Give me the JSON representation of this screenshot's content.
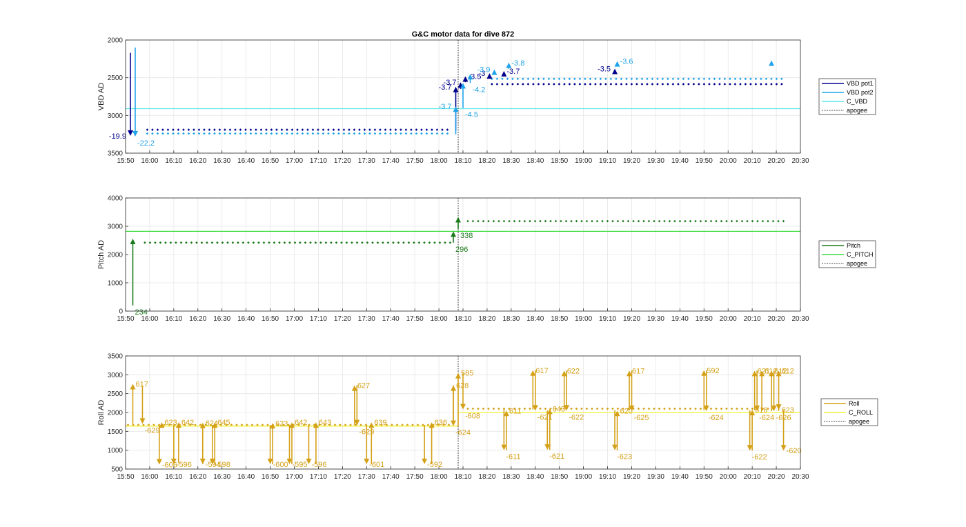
{
  "figure_title": "G&C motor data for dive 872",
  "chart_data": [
    {
      "type": "line",
      "panel": "vbd",
      "ylabel": "VBD AD",
      "ylim": [
        2000,
        3500
      ],
      "y_reversed": true,
      "yticks": [
        2000,
        2500,
        3000,
        3500
      ],
      "xlim": [
        "15:50",
        "20:30"
      ],
      "xticks": [
        "15:50",
        "16:00",
        "16:10",
        "16:20",
        "16:30",
        "16:40",
        "16:50",
        "17:00",
        "17:10",
        "17:20",
        "17:30",
        "17:40",
        "17:50",
        "18:00",
        "18:10",
        "18:20",
        "18:30",
        "18:40",
        "18:50",
        "19:00",
        "19:10",
        "19:20",
        "19:30",
        "19:40",
        "19:50",
        "20:00",
        "20:10",
        "20:20",
        "20:30"
      ],
      "grid": true,
      "legend_position": "right",
      "colors": {
        "pot1": "#00008b",
        "pot2": "#1fa3ea",
        "c_vbd": "#5ee8e8",
        "apogee": "#444444"
      },
      "series": [
        {
          "name": "VBD pot1",
          "dots": [
            {
              "from": "15:59",
              "to": "18:05",
              "y": 3190
            },
            {
              "from": "18:22",
              "to": "20:23",
              "y": 2585
            }
          ]
        },
        {
          "name": "VBD pot2",
          "dots": [
            {
              "from": "15:59",
              "to": "18:05",
              "y": 3240
            },
            {
              "from": "18:22",
              "to": "20:23",
              "y": 2515
            }
          ]
        },
        {
          "name": "C_VBD",
          "y": 2910
        },
        {
          "name": "apogee",
          "x": "18:08"
        }
      ],
      "arrows": [
        {
          "series": "pot1",
          "x": "15:52",
          "y0": 2170,
          "y1": 3270,
          "label": "-19.9",
          "label_side": "left"
        },
        {
          "series": "pot2",
          "x": "15:54",
          "y0": 2100,
          "y1": 3280,
          "label": "-22.2",
          "label_side": "below"
        },
        {
          "series": "pot1",
          "x": "18:07",
          "y0": 3200,
          "y1": 2620,
          "label": "-3.7",
          "label_side": "left"
        },
        {
          "series": "pot2",
          "x": "18:07",
          "y0": 3250,
          "y1": 2880,
          "label": "-3.7",
          "label_side": "left"
        },
        {
          "series": "pot1",
          "x": "18:09",
          "y0": 2650,
          "y1": 2560,
          "label": "-3.7",
          "label_side": "left"
        },
        {
          "series": "pot2",
          "x": "18:10",
          "y0": 2900,
          "y1": 2570,
          "label": "-4.5",
          "label_side": "below"
        },
        {
          "series": "pot1",
          "x": "18:11",
          "y0": 2560,
          "y1": 2480,
          "label": "-3.5",
          "label_side": "right"
        },
        {
          "series": "pot2",
          "x": "18:13",
          "y0": 2570,
          "y1": 2450,
          "label": "-4.2",
          "label_side": "below"
        },
        {
          "series": "pot1",
          "x": "18:21",
          "y0": 2500,
          "y1": 2440,
          "label": "-3",
          "label_side": "left"
        },
        {
          "series": "pot2",
          "x": "18:23",
          "y0": 2460,
          "y1": 2390,
          "label": "-3.9",
          "label_side": "left"
        },
        {
          "series": "pot1",
          "x": "18:27",
          "y0": 2470,
          "y1": 2410,
          "label": "-3.7",
          "label_side": "right"
        },
        {
          "series": "pot2",
          "x": "18:29",
          "y0": 2380,
          "y1": 2300,
          "label": "-3.8",
          "label_side": "right"
        },
        {
          "series": "pot1",
          "x": "19:13",
          "y0": 2440,
          "y1": 2380,
          "label": "-3.5",
          "label_side": "left"
        },
        {
          "series": "pot2",
          "x": "19:14",
          "y0": 2330,
          "y1": 2280,
          "label": "-3.6",
          "label_side": "right"
        },
        {
          "series": "pot2",
          "x": "20:18",
          "y0": 2310,
          "y1": 2270,
          "label": "",
          "label_side": "right"
        }
      ]
    },
    {
      "type": "line",
      "panel": "pitch",
      "ylabel": "Pitch AD",
      "ylim": [
        0,
        4000
      ],
      "y_reversed": false,
      "yticks": [
        0,
        1000,
        2000,
        3000,
        4000
      ],
      "xlim": [
        "15:50",
        "20:30"
      ],
      "xticks": [
        "15:50",
        "16:00",
        "16:10",
        "16:20",
        "16:30",
        "16:40",
        "16:50",
        "17:00",
        "17:10",
        "17:20",
        "17:30",
        "17:40",
        "17:50",
        "18:00",
        "18:10",
        "18:20",
        "18:30",
        "18:40",
        "18:50",
        "19:00",
        "19:10",
        "19:20",
        "19:30",
        "19:40",
        "19:50",
        "20:00",
        "20:10",
        "20:20",
        "20:30"
      ],
      "grid": true,
      "legend_position": "right",
      "colors": {
        "pitch": "#1b7a1b",
        "c_pitch": "#3ddb3d",
        "apogee": "#444444"
      },
      "series": [
        {
          "name": "Pitch",
          "dots": [
            {
              "from": "15:58",
              "to": "18:05",
              "y": 2420
            },
            {
              "from": "18:12",
              "to": "20:23",
              "y": 3180
            }
          ]
        },
        {
          "name": "C_PITCH",
          "y": 2820
        },
        {
          "name": "apogee",
          "x": "18:08"
        }
      ],
      "arrows": [
        {
          "series": "pitch",
          "x": "15:53",
          "y0": 200,
          "y1": 2560,
          "label": "234",
          "label_side": "below"
        },
        {
          "series": "pitch",
          "x": "18:06",
          "y0": 2420,
          "y1": 2820,
          "label": "296",
          "label_side": "below"
        },
        {
          "series": "pitch",
          "x": "18:08",
          "y0": 2900,
          "y1": 3330,
          "label": "338",
          "label_side": "below"
        }
      ]
    },
    {
      "type": "line",
      "panel": "roll",
      "ylabel": "Roll AD",
      "ylim": [
        500,
        3500
      ],
      "y_reversed": false,
      "yticks": [
        500,
        1000,
        1500,
        2000,
        2500,
        3000,
        3500
      ],
      "xlim": [
        "15:50",
        "20:30"
      ],
      "xticks": [
        "15:50",
        "16:00",
        "16:10",
        "16:20",
        "16:30",
        "16:40",
        "16:50",
        "17:00",
        "17:10",
        "17:20",
        "17:30",
        "17:40",
        "17:50",
        "18:00",
        "18:10",
        "18:20",
        "18:30",
        "18:40",
        "18:50",
        "19:00",
        "19:10",
        "19:20",
        "19:30",
        "19:40",
        "19:50",
        "20:00",
        "20:10",
        "20:20",
        "20:30"
      ],
      "grid": true,
      "legend_position": "right",
      "colors": {
        "roll": "#d4a017",
        "c_roll": "#f2f230",
        "apogee": "#444444"
      },
      "series": [
        {
          "name": "Roll",
          "dots": [
            {
              "from": "15:51",
              "to": "18:05",
              "y": 1670
            },
            {
              "from": "18:12",
              "to": "20:20",
              "y": 2100
            }
          ]
        },
        {
          "name": "C_ROLL",
          "y": 1640,
          "y_after_apogee": 2000
        },
        {
          "name": "apogee",
          "x": "18:08"
        }
      ],
      "arrows": [
        {
          "series": "roll",
          "x": "15:53",
          "y0": 1700,
          "y1": 2760,
          "label": "617",
          "label_side": "right"
        },
        {
          "series": "roll",
          "x": "15:57",
          "y0": 2700,
          "y1": 1700,
          "label": "-629",
          "label_side": "below"
        },
        {
          "series": "roll",
          "x": "16:04",
          "y0": 1670,
          "y1": 620,
          "label": "-606",
          "label_side": "right"
        },
        {
          "series": "roll",
          "x": "16:05",
          "y0": 1620,
          "y1": 1740,
          "label": "623",
          "label_side": "right"
        },
        {
          "series": "roll",
          "x": "16:10",
          "y0": 1670,
          "y1": 630,
          "label": "-596",
          "label_side": "right"
        },
        {
          "series": "roll",
          "x": "16:12",
          "y0": 660,
          "y1": 1740,
          "label": "642",
          "label_side": "right"
        },
        {
          "series": "roll",
          "x": "16:22",
          "y0": 1670,
          "y1": 630,
          "label": "-594",
          "label_side": "right"
        },
        {
          "series": "roll",
          "x": "16:22",
          "y0": 630,
          "y1": 1730,
          "label": "624",
          "label_side": "right"
        },
        {
          "series": "roll",
          "x": "16:26",
          "y0": 1670,
          "y1": 630,
          "label": "-598",
          "label_side": "right"
        },
        {
          "series": "roll",
          "x": "16:27",
          "y0": 630,
          "y1": 1740,
          "label": "645",
          "label_side": "right"
        },
        {
          "series": "roll",
          "x": "16:50",
          "y0": 1670,
          "y1": 630,
          "label": "-600",
          "label_side": "right"
        },
        {
          "series": "roll",
          "x": "16:51",
          "y0": 630,
          "y1": 1720,
          "label": "623",
          "label_side": "right"
        },
        {
          "series": "roll",
          "x": "16:58",
          "y0": 1670,
          "y1": 630,
          "label": "-595",
          "label_side": "right"
        },
        {
          "series": "roll",
          "x": "16:59",
          "y0": 630,
          "y1": 1740,
          "label": "642",
          "label_side": "right"
        },
        {
          "series": "roll",
          "x": "17:06",
          "y0": 1670,
          "y1": 630,
          "label": "-596",
          "label_side": "right"
        },
        {
          "series": "roll",
          "x": "17:09",
          "y0": 630,
          "y1": 1740,
          "label": "643",
          "label_side": "right"
        },
        {
          "series": "roll",
          "x": "17:25",
          "y0": 1670,
          "y1": 2720,
          "label": "627",
          "label_side": "right"
        },
        {
          "series": "roll",
          "x": "17:26",
          "y0": 2720,
          "y1": 1660,
          "label": "-629",
          "label_side": "below"
        },
        {
          "series": "roll",
          "x": "17:30",
          "y0": 1670,
          "y1": 630,
          "label": "-601",
          "label_side": "right"
        },
        {
          "series": "roll",
          "x": "17:32",
          "y0": 630,
          "y1": 1740,
          "label": "639",
          "label_side": "right"
        },
        {
          "series": "roll",
          "x": "17:54",
          "y0": 1670,
          "y1": 630,
          "label": "-592",
          "label_side": "right"
        },
        {
          "series": "roll",
          "x": "17:57",
          "y0": 630,
          "y1": 1740,
          "label": "636",
          "label_side": "right"
        },
        {
          "series": "roll",
          "x": "18:06",
          "y0": 1670,
          "y1": 2720,
          "label": "628",
          "label_side": "right"
        },
        {
          "series": "roll",
          "x": "18:06",
          "y0": 2720,
          "y1": 1640,
          "label": "-624",
          "label_side": "below"
        },
        {
          "series": "roll",
          "x": "18:08",
          "y0": 1640,
          "y1": 3050,
          "label": "585",
          "label_side": "right"
        },
        {
          "series": "roll",
          "x": "18:10",
          "y0": 3050,
          "y1": 2080,
          "label": "-608",
          "label_side": "below"
        },
        {
          "series": "roll",
          "x": "18:27",
          "y0": 2080,
          "y1": 1000,
          "label": "-611",
          "label_side": "below"
        },
        {
          "series": "roll",
          "x": "18:28",
          "y0": 1000,
          "y1": 2050,
          "label": "611",
          "label_side": "right"
        },
        {
          "series": "roll",
          "x": "18:39",
          "y0": 2080,
          "y1": 3120,
          "label": "617",
          "label_side": "right"
        },
        {
          "series": "roll",
          "x": "18:40",
          "y0": 3120,
          "y1": 2050,
          "label": "-621",
          "label_side": "below"
        },
        {
          "series": "roll",
          "x": "18:45",
          "y0": 2050,
          "y1": 1010,
          "label": "-621",
          "label_side": "below"
        },
        {
          "series": "roll",
          "x": "18:46",
          "y0": 1010,
          "y1": 2100,
          "label": "643",
          "label_side": "right"
        },
        {
          "series": "roll",
          "x": "18:52",
          "y0": 2080,
          "y1": 3110,
          "label": "622",
          "label_side": "right"
        },
        {
          "series": "roll",
          "x": "18:53",
          "y0": 3110,
          "y1": 2050,
          "label": "-622",
          "label_side": "below"
        },
        {
          "series": "roll",
          "x": "19:13",
          "y0": 2060,
          "y1": 1000,
          "label": "-623",
          "label_side": "below"
        },
        {
          "series": "roll",
          "x": "19:14",
          "y0": 1000,
          "y1": 2050,
          "label": "620",
          "label_side": "right"
        },
        {
          "series": "roll",
          "x": "19:19",
          "y0": 2070,
          "y1": 3110,
          "label": "617",
          "label_side": "right"
        },
        {
          "series": "roll",
          "x": "19:20",
          "y0": 3110,
          "y1": 2040,
          "label": "-625",
          "label_side": "below"
        },
        {
          "series": "roll",
          "x": "19:50",
          "y0": 2070,
          "y1": 3120,
          "label": "592",
          "label_side": "right"
        },
        {
          "series": "roll",
          "x": "19:51",
          "y0": 3120,
          "y1": 2040,
          "label": "-624",
          "label_side": "below"
        },
        {
          "series": "roll",
          "x": "20:09",
          "y0": 2060,
          "y1": 990,
          "label": "-622",
          "label_side": "below"
        },
        {
          "series": "roll",
          "x": "20:10",
          "y0": 990,
          "y1": 2070,
          "label": "616",
          "label_side": "right"
        },
        {
          "series": "roll",
          "x": "20:11",
          "y0": 2070,
          "y1": 3110,
          "label": "621",
          "label_side": "right"
        },
        {
          "series": "roll",
          "x": "20:12",
          "y0": 3110,
          "y1": 2040,
          "label": "-624",
          "label_side": "below"
        },
        {
          "series": "roll",
          "x": "20:14",
          "y0": 2040,
          "y1": 3110,
          "label": "612",
          "label_side": "right"
        },
        {
          "series": "roll",
          "x": "20:18",
          "y0": 2040,
          "y1": 3110,
          "label": "612",
          "label_side": "right"
        },
        {
          "series": "roll",
          "x": "20:19",
          "y0": 3110,
          "y1": 2040,
          "label": "-626",
          "label_side": "below"
        },
        {
          "series": "roll",
          "x": "20:21",
          "y0": 2040,
          "y1": 3110,
          "label": "612",
          "label_side": "right"
        },
        {
          "series": "roll",
          "x": "20:21",
          "y0": 2120,
          "y1": 2070,
          "label": "623",
          "label_side": "right"
        },
        {
          "series": "roll",
          "x": "20:23",
          "y0": 2060,
          "y1": 990,
          "label": "-620",
          "label_side": "right"
        }
      ]
    }
  ],
  "legends": [
    {
      "panel": "vbd",
      "entries": [
        {
          "label": "VBD pot1",
          "color": "#00008b",
          "style": "solid"
        },
        {
          "label": "VBD pot2",
          "color": "#1fa3ea",
          "style": "solid"
        },
        {
          "label": "C_VBD",
          "color": "#5ee8e8",
          "style": "solid"
        },
        {
          "label": "apogee",
          "color": "#444444",
          "style": "dotted"
        }
      ]
    },
    {
      "panel": "pitch",
      "entries": [
        {
          "label": "Pitch",
          "color": "#1b7a1b",
          "style": "solid"
        },
        {
          "label": "C_PITCH",
          "color": "#3ddb3d",
          "style": "solid"
        },
        {
          "label": "apogee",
          "color": "#444444",
          "style": "dotted"
        }
      ]
    },
    {
      "panel": "roll",
      "entries": [
        {
          "label": "Roll",
          "color": "#d4a017",
          "style": "solid"
        },
        {
          "label": "C_ROLL",
          "color": "#f2f230",
          "style": "solid"
        },
        {
          "label": "apogee",
          "color": "#444444",
          "style": "dotted"
        }
      ]
    }
  ]
}
